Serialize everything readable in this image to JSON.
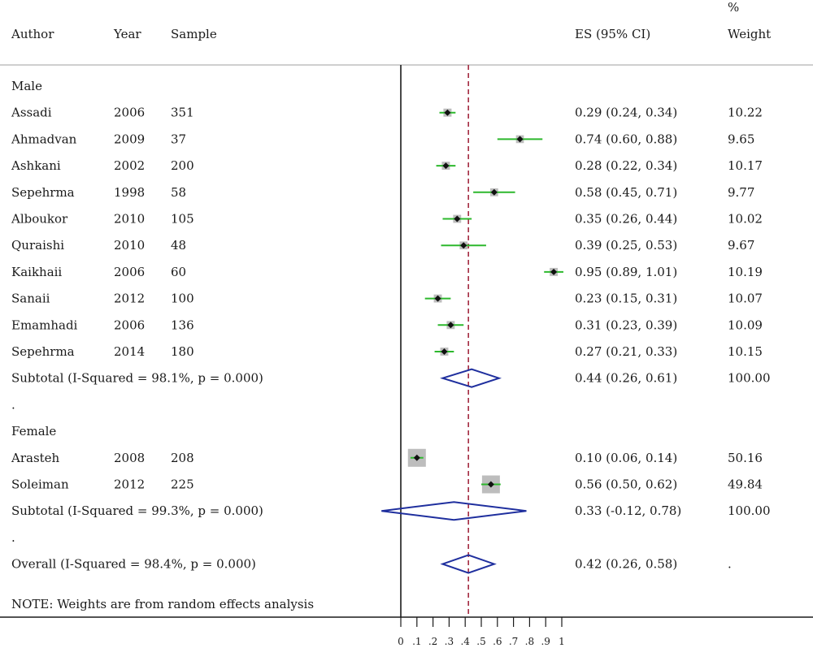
{
  "headers": {
    "author": "Author",
    "year": "Year",
    "sample": "Sample",
    "es": "ES (95% CI)",
    "weight_line1": "%",
    "weight_line2": "Weight"
  },
  "note": "NOTE: Weights are from random effects analysis",
  "colors": {
    "ci_line": "#2db82d",
    "weight_box": "#bdbdbd",
    "diamond": "#1f2f9e",
    "reference_line": "#a3283f",
    "axis": "#1a1a1a",
    "separator": "#cfcfcf"
  },
  "chart_data": {
    "type": "forest",
    "x_ticks": [
      0,
      0.1,
      0.2,
      0.3,
      0.4,
      0.5,
      0.6,
      0.7,
      0.8,
      0.9,
      1
    ],
    "x_tick_labels": [
      "0",
      ".1",
      ".2",
      ".3",
      ".4",
      ".5",
      ".6",
      ".7",
      ".8",
      ".9",
      "1"
    ],
    "reference_line": 0.42,
    "rows": [
      {
        "kind": "group",
        "label": "Male"
      },
      {
        "kind": "study",
        "author": "Assadi",
        "year": "2006",
        "sample": "351",
        "es": 0.29,
        "lo": 0.24,
        "hi": 0.34,
        "es_text": "0.29 (0.24, 0.34)",
        "weight": "10.22"
      },
      {
        "kind": "study",
        "author": "Ahmadvan",
        "year": "2009",
        "sample": "37",
        "es": 0.74,
        "lo": 0.6,
        "hi": 0.88,
        "es_text": "0.74 (0.60, 0.88)",
        "weight": "9.65"
      },
      {
        "kind": "study",
        "author": "Ashkani",
        "year": "2002",
        "sample": "200",
        "es": 0.28,
        "lo": 0.22,
        "hi": 0.34,
        "es_text": "0.28 (0.22, 0.34)",
        "weight": "10.17"
      },
      {
        "kind": "study",
        "author": "Sepehrma",
        "year": "1998",
        "sample": "58",
        "es": 0.58,
        "lo": 0.45,
        "hi": 0.71,
        "es_text": "0.58 (0.45, 0.71)",
        "weight": "9.77"
      },
      {
        "kind": "study",
        "author": "Alboukor",
        "year": "2010",
        "sample": "105",
        "es": 0.35,
        "lo": 0.26,
        "hi": 0.44,
        "es_text": "0.35 (0.26, 0.44)",
        "weight": "10.02"
      },
      {
        "kind": "study",
        "author": "Quraishi",
        "year": "2010",
        "sample": "48",
        "es": 0.39,
        "lo": 0.25,
        "hi": 0.53,
        "es_text": "0.39 (0.25, 0.53)",
        "weight": "9.67"
      },
      {
        "kind": "study",
        "author": "Kaikhaii",
        "year": "2006",
        "sample": "60",
        "es": 0.95,
        "lo": 0.89,
        "hi": 1.01,
        "es_text": "0.95 (0.89, 1.01)",
        "weight": "10.19"
      },
      {
        "kind": "study",
        "author": "Sanaii",
        "year": "2012",
        "sample": "100",
        "es": 0.23,
        "lo": 0.15,
        "hi": 0.31,
        "es_text": "0.23 (0.15, 0.31)",
        "weight": "10.07"
      },
      {
        "kind": "study",
        "author": "Emamhadi",
        "year": "2006",
        "sample": "136",
        "es": 0.31,
        "lo": 0.23,
        "hi": 0.39,
        "es_text": "0.31 (0.23, 0.39)",
        "weight": "10.09"
      },
      {
        "kind": "study",
        "author": "Sepehrma",
        "year": "2014",
        "sample": "180",
        "es": 0.27,
        "lo": 0.21,
        "hi": 0.33,
        "es_text": "0.27 (0.21, 0.33)",
        "weight": "10.15"
      },
      {
        "kind": "subtotal",
        "label": "Subtotal  (I-Squared = 98.1%, p = 0.000)",
        "es": 0.44,
        "lo": 0.26,
        "hi": 0.61,
        "es_text": "0.44 (0.26, 0.61)",
        "weight": "100.00"
      },
      {
        "kind": "dot",
        "label": "."
      },
      {
        "kind": "group",
        "label": "Female"
      },
      {
        "kind": "study",
        "author": "Arasteh",
        "year": "2008",
        "sample": "208",
        "es": 0.1,
        "lo": 0.06,
        "hi": 0.14,
        "es_text": "0.10 (0.06, 0.14)",
        "weight": "50.16"
      },
      {
        "kind": "study",
        "author": "Soleiman",
        "year": "2012",
        "sample": "225",
        "es": 0.56,
        "lo": 0.5,
        "hi": 0.62,
        "es_text": "0.56 (0.50, 0.62)",
        "weight": "49.84"
      },
      {
        "kind": "subtotal",
        "label": "Subtotal  (I-Squared = 99.3%, p = 0.000)",
        "es": 0.33,
        "lo": -0.12,
        "hi": 0.78,
        "es_text": "0.33 (-0.12, 0.78)",
        "weight": "100.00"
      },
      {
        "kind": "dot",
        "label": "."
      },
      {
        "kind": "overall",
        "label": "Overall  (I-Squared = 98.4%, p = 0.000)",
        "es": 0.42,
        "lo": 0.26,
        "hi": 0.58,
        "es_text": "0.42 (0.26, 0.58)",
        "weight": "."
      }
    ]
  }
}
